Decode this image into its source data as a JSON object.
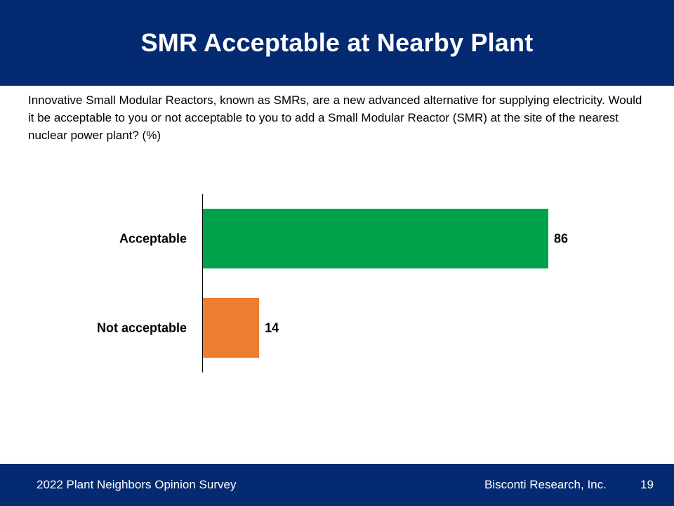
{
  "header": {
    "title": "SMR Acceptable at Nearby Plant"
  },
  "question": "Innovative Small Modular Reactors, known as SMRs, are a new advanced alternative for supplying electricity.  Would it be acceptable to you or not acceptable to you to add a Small Modular Reactor (SMR) at the site of the nearest nuclear power plant? (%)",
  "chart_data": {
    "type": "bar",
    "orientation": "horizontal",
    "categories": [
      "Acceptable",
      "Not acceptable"
    ],
    "values": [
      86,
      14
    ],
    "colors": [
      "#00a14b",
      "#ed7d31"
    ],
    "xlim": [
      0,
      100
    ],
    "title": "",
    "xlabel": "",
    "ylabel": "",
    "grid": false,
    "legend": "none",
    "data_labels": [
      "86",
      "14"
    ]
  },
  "footer": {
    "survey": "2022 Plant Neighbors Opinion Survey",
    "company": "Bisconti Research, Inc.",
    "page": "19"
  },
  "colors": {
    "brand_navy": "#042a72"
  }
}
